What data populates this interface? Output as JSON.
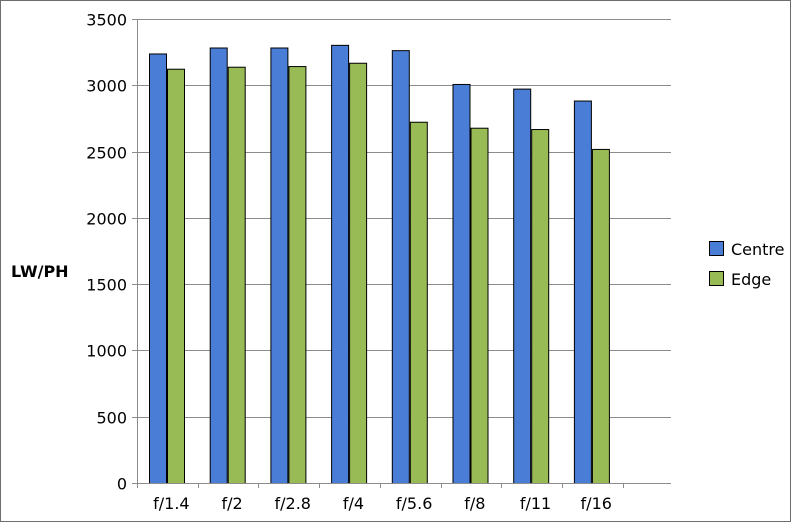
{
  "chart_data": {
    "type": "bar",
    "categories": [
      "f/1.4",
      "f/2",
      "f/2.8",
      "f/4",
      "f/5.6",
      "f/8",
      "f/11",
      "f/16"
    ],
    "series": [
      {
        "name": "Centre",
        "color": "#4a7ed6",
        "values": [
          3240,
          3285,
          3285,
          3305,
          3265,
          3010,
          2975,
          2885
        ]
      },
      {
        "name": "Edge",
        "color": "#99bb55",
        "values": [
          3125,
          3140,
          3145,
          3170,
          2725,
          2680,
          2670,
          2520
        ]
      }
    ],
    "title": "",
    "xlabel": "",
    "ylabel": "LW/PH",
    "ylim": [
      0,
      3500
    ],
    "yticks": [
      0,
      500,
      1000,
      1500,
      2000,
      2500,
      3000,
      3500
    ],
    "grid": true,
    "legend": "right",
    "border_color": "#000000",
    "gridline_color": "#8c8c8c",
    "axis_color": "#8c8c8c"
  }
}
